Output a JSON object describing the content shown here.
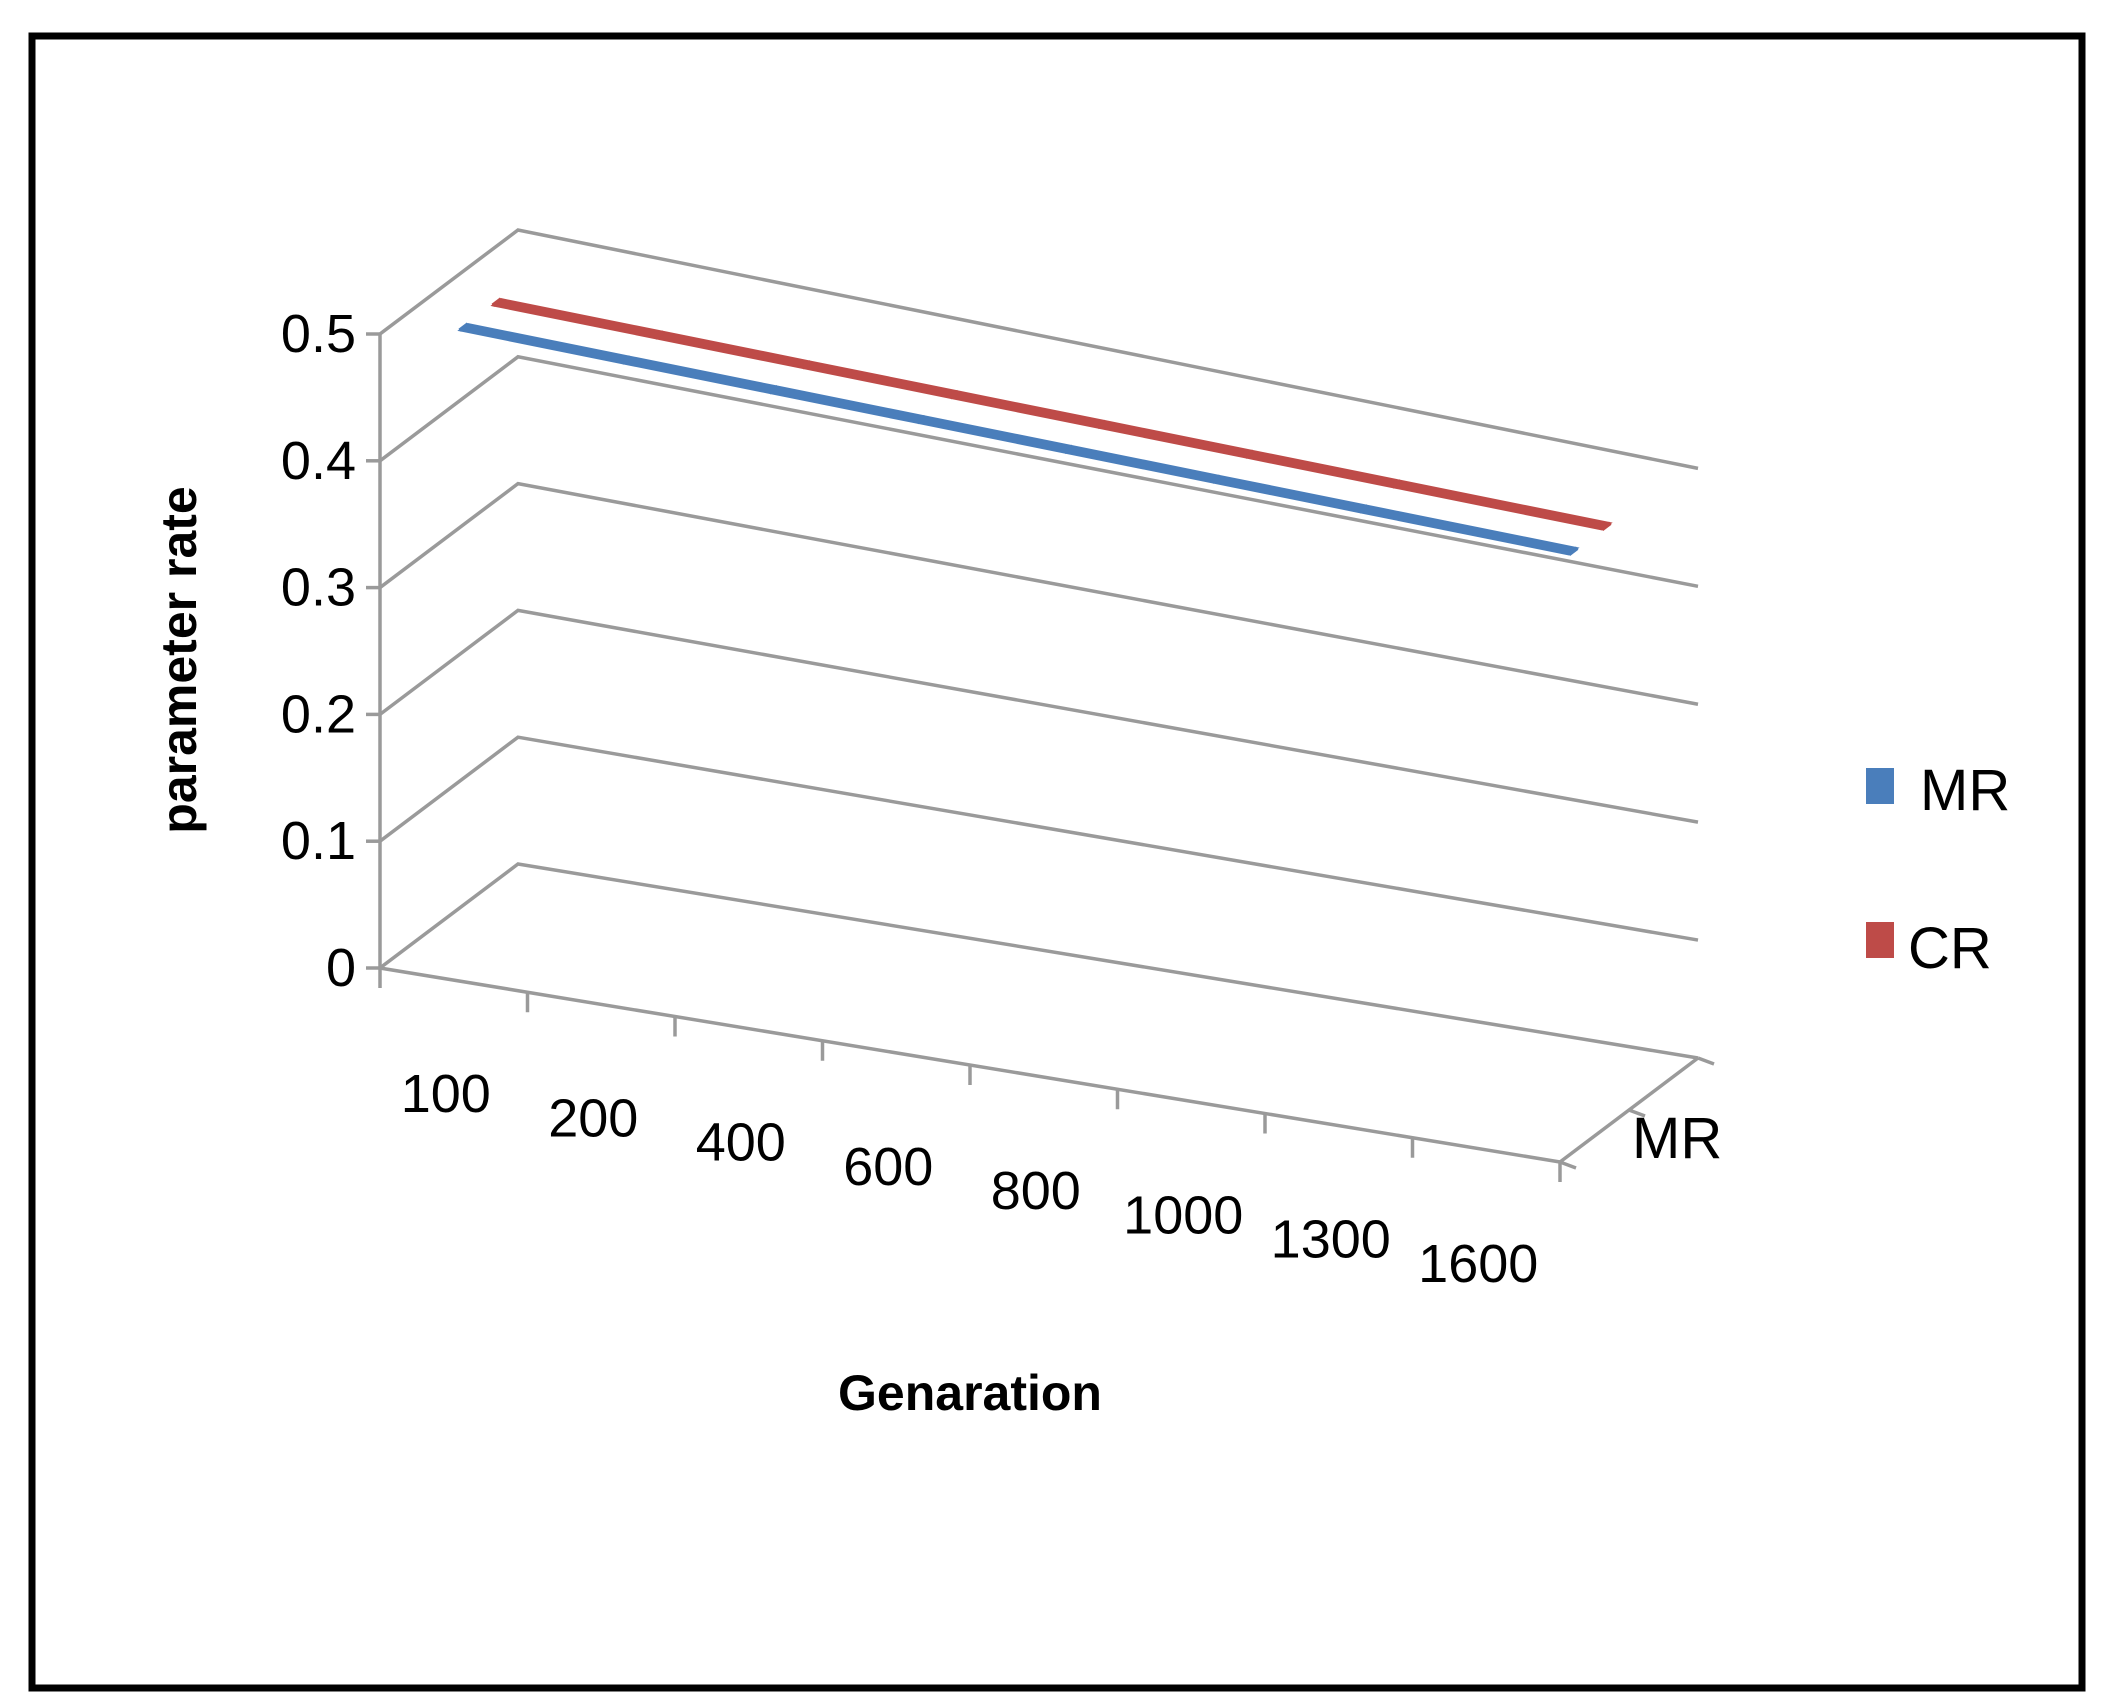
{
  "chart_data": {
    "type": "bar",
    "subtype": "3d-line",
    "title": "",
    "xlabel": "Genaration",
    "ylabel": "parameter rate",
    "categories": [
      "100",
      "200",
      "400",
      "600",
      "800",
      "1000",
      "1300",
      "1600"
    ],
    "series": [
      {
        "name": "MR",
        "values": [
          0.5,
          0.5,
          0.5,
          0.5,
          0.5,
          0.5,
          0.5,
          0.5
        ],
        "color": "#4a7ebb"
      },
      {
        "name": "CR",
        "values": [
          0.5,
          0.5,
          0.5,
          0.5,
          0.5,
          0.5,
          0.5,
          0.5
        ],
        "color": "#be4b48"
      }
    ],
    "ylim": [
      0,
      0.5
    ],
    "yticks": [
      "0",
      "0.1",
      "0.2",
      "0.3",
      "0.4",
      "0.5"
    ],
    "depth_axis_label": "MR",
    "grid": true,
    "legend": {
      "position": "right",
      "entries": [
        "MR",
        "CR"
      ]
    }
  },
  "colors": {
    "grid": "#9a9a9a",
    "frame": "#000000",
    "background": "#ffffff"
  }
}
